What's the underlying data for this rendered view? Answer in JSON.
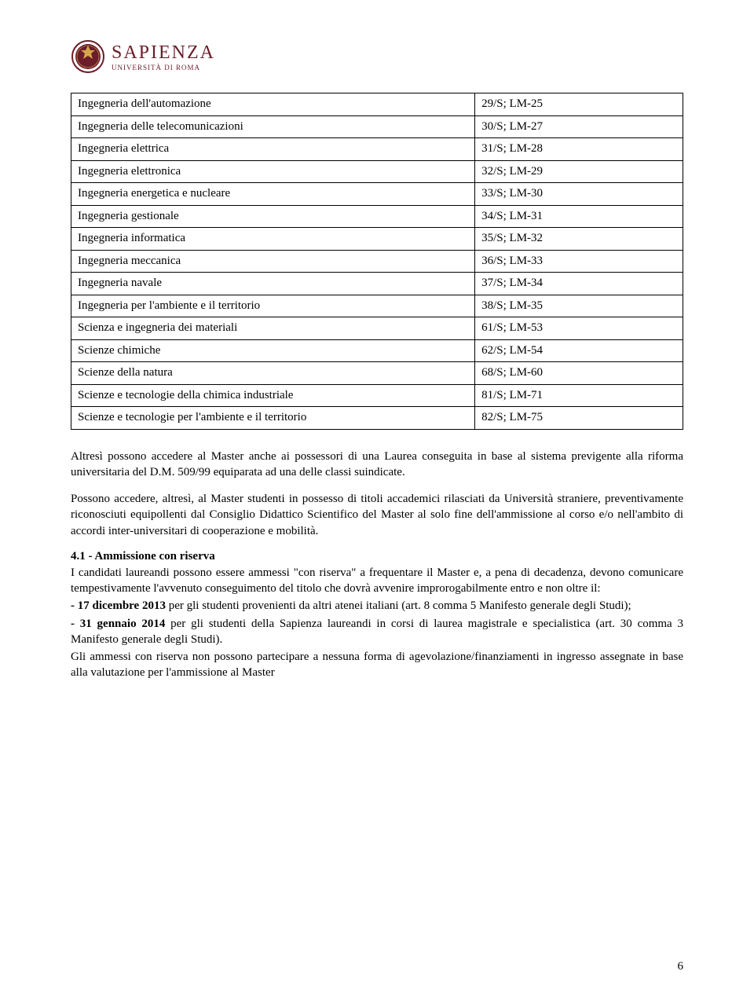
{
  "logo": {
    "main": "SAPIENZA",
    "sub": "UNIVERSITÀ DI ROMA",
    "crest_color": "#6b1d2a"
  },
  "table": {
    "rows": [
      {
        "label": "Ingegneria dell'automazione",
        "code": "29/S;  LM-25"
      },
      {
        "label": "Ingegneria delle telecomunicazioni",
        "code": "30/S; LM-27"
      },
      {
        "label": "Ingegneria elettrica",
        "code": "31/S; LM-28"
      },
      {
        "label": "Ingegneria elettronica",
        "code": "32/S; LM-29"
      },
      {
        "label": "Ingegneria energetica e nucleare",
        "code": "33/S; LM-30"
      },
      {
        "label": "Ingegneria gestionale",
        "code": "34/S; LM-31"
      },
      {
        "label": "Ingegneria informatica",
        "code": "35/S; LM-32"
      },
      {
        "label": "Ingegneria meccanica",
        "code": "36/S; LM-33"
      },
      {
        "label": "Ingegneria navale",
        "code": "37/S; LM-34"
      },
      {
        "label": "Ingegneria per l'ambiente e il territorio",
        "code": "38/S; LM-35"
      },
      {
        "label": "Scienza e ingegneria dei materiali",
        "code": "61/S; LM-53"
      },
      {
        "label": "Scienze chimiche",
        "code": "62/S; LM-54"
      },
      {
        "label": "Scienze della natura",
        "code": "68/S; LM-60"
      },
      {
        "label": "Scienze e tecnologie della chimica industriale",
        "code": "81/S; LM-71"
      },
      {
        "label": "Scienze e tecnologie per l'ambiente e il territorio",
        "code": "82/S; LM-75"
      }
    ]
  },
  "paragraphs": {
    "p1": "Altresì possono accedere al Master anche ai possessori di una Laurea conseguita in base al sistema previgente alla riforma universitaria del D.M. 509/99 equiparata ad una delle classi suindicate.",
    "p2": "Possono accedere, altresì, al Master studenti in possesso di titoli accademici rilasciati da Università straniere, preventivamente riconosciuti equipollenti dal Consiglio Didattico Scientifico del Master al solo fine dell'ammissione al corso e/o nell'ambito di accordi inter-universitari di cooperazione e mobilità."
  },
  "section41": {
    "heading": "4.1 - Ammissione con riserva",
    "body1": " I candidati laureandi possono essere ammessi \"con riserva\" a frequentare il Master e, a pena di decadenza, devono comunicare tempestivamente l'avvenuto conseguimento del titolo che dovrà avvenire improrogabilmente entro e non oltre il:",
    "bullet1_bold": "- 17 dicembre 2013",
    "bullet1_rest": " per gli studenti provenienti da altri atenei italiani (art. 8 comma 5 Manifesto generale degli Studi);",
    "bullet2_bold": "- 31 gennaio 2014",
    "bullet2_rest": " per gli studenti della Sapienza laureandi in corsi di laurea magistrale e specialistica (art. 30 comma 3 Manifesto generale degli Studi).",
    "body2": " Gli ammessi con riserva non possono partecipare a nessuna forma di agevolazione/finanziamenti in ingresso assegnate in base alla valutazione per l'ammissione al Master"
  },
  "page_number": "6"
}
